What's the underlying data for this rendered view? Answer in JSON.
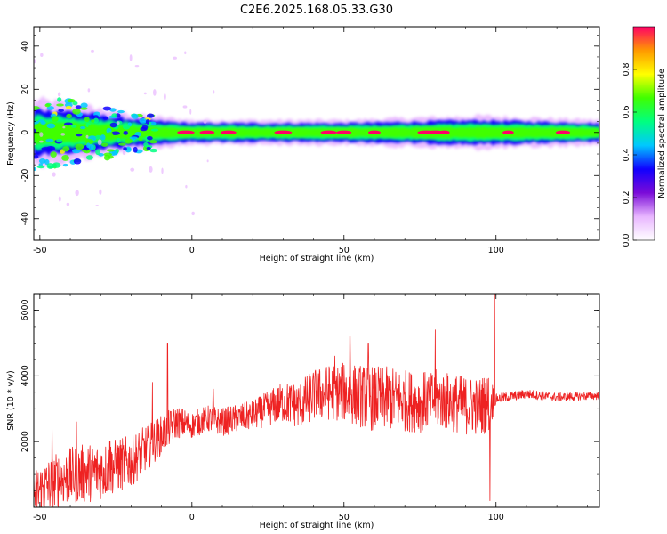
{
  "title": "C2E6.2025.168.05.33.G30",
  "colors": {
    "snr_line": "#ee2222",
    "axis": "#000000",
    "background": "#ffffff"
  },
  "chart_data": [
    {
      "type": "heatmap",
      "xlabel": "Height of straight line (km)",
      "ylabel": "Frequency (Hz)",
      "xlim": [
        -52,
        134
      ],
      "ylim": [
        -50,
        49
      ],
      "x_ticks": [
        -50,
        0,
        50,
        100
      ],
      "y_ticks": [
        -40,
        -20,
        0,
        20,
        40
      ],
      "colorbar": {
        "label": "Normalized spectral amplitude",
        "range": [
          0.0,
          1.0
        ],
        "ticks": [
          0.0,
          0.2,
          0.4,
          0.6,
          0.8
        ],
        "colormap": [
          "#ffffff",
          "#e8b6ff",
          "#7a0bd8",
          "#1000ff",
          "#00c8ff",
          "#00ff80",
          "#40ff00",
          "#ffff00",
          "#ff9900",
          "#ff0066"
        ]
      },
      "band": {
        "center_hz": 0,
        "half_width_hz": [
          {
            "x": -52,
            "value": 8
          },
          {
            "x": -40,
            "value": 7
          },
          {
            "x": -25,
            "value": 5
          },
          {
            "x": -15,
            "value": 4
          },
          {
            "x": 0,
            "value": 3
          },
          {
            "x": 50,
            "value": 3
          },
          {
            "x": 95,
            "value": 4
          },
          {
            "x": 134,
            "value": 3
          }
        ],
        "hot_spots_km": [
          -2,
          5,
          12,
          30,
          45,
          50,
          60,
          77,
          80,
          83,
          104,
          122
        ]
      }
    },
    {
      "type": "line",
      "xlabel": "Height of straight line (km)",
      "ylabel": "SNR (10 * v/v)",
      "xlim": [
        -52,
        134
      ],
      "ylim": [
        0,
        6500
      ],
      "x_ticks": [
        -50,
        0,
        50,
        100
      ],
      "y_ticks": [
        2000,
        4000,
        6000
      ],
      "series": [
        {
          "trend": [
            {
              "x": -52,
              "value": 400
            },
            {
              "x": -45,
              "value": 800
            },
            {
              "x": -38,
              "value": 1000
            },
            {
              "x": -30,
              "value": 1100
            },
            {
              "x": -20,
              "value": 1400
            },
            {
              "x": -10,
              "value": 2200
            },
            {
              "x": -5,
              "value": 2600
            },
            {
              "x": 0,
              "value": 2500
            },
            {
              "x": 5,
              "value": 2700
            },
            {
              "x": 10,
              "value": 2600
            },
            {
              "x": 20,
              "value": 2800
            },
            {
              "x": 25,
              "value": 3000
            },
            {
              "x": 30,
              "value": 3200
            },
            {
              "x": 35,
              "value": 3100
            },
            {
              "x": 40,
              "value": 3400
            },
            {
              "x": 45,
              "value": 3500
            },
            {
              "x": 50,
              "value": 3500
            },
            {
              "x": 55,
              "value": 3400
            },
            {
              "x": 60,
              "value": 3300
            },
            {
              "x": 65,
              "value": 3300
            },
            {
              "x": 70,
              "value": 3250
            },
            {
              "x": 75,
              "value": 3200
            },
            {
              "x": 80,
              "value": 3300
            },
            {
              "x": 85,
              "value": 3200
            },
            {
              "x": 90,
              "value": 3100
            },
            {
              "x": 95,
              "value": 3100
            },
            {
              "x": 98,
              "value": 3200
            },
            {
              "x": 100,
              "value": 3300
            },
            {
              "x": 110,
              "value": 3450
            },
            {
              "x": 120,
              "value": 3350
            },
            {
              "x": 134,
              "value": 3400
            }
          ],
          "noise_amplitude": [
            {
              "x": -52,
              "value": 800
            },
            {
              "x": -35,
              "value": 900
            },
            {
              "x": -20,
              "value": 800
            },
            {
              "x": -10,
              "value": 600
            },
            {
              "x": 0,
              "value": 400
            },
            {
              "x": 20,
              "value": 450
            },
            {
              "x": 40,
              "value": 800
            },
            {
              "x": 60,
              "value": 1000
            },
            {
              "x": 80,
              "value": 900
            },
            {
              "x": 98,
              "value": 900
            },
            {
              "x": 100,
              "value": 150
            },
            {
              "x": 134,
              "value": 120
            }
          ],
          "spikes": [
            {
              "x": -46,
              "value": 2700
            },
            {
              "x": -38,
              "value": 2600
            },
            {
              "x": -27,
              "value": 2000
            },
            {
              "x": -13,
              "value": 3800
            },
            {
              "x": -8,
              "value": 5000
            },
            {
              "x": 7,
              "value": 3600
            },
            {
              "x": 47,
              "value": 4600
            },
            {
              "x": 52,
              "value": 5200
            },
            {
              "x": 58,
              "value": 5000
            },
            {
              "x": 80,
              "value": 5400
            },
            {
              "x": 98,
              "value": 200
            },
            {
              "x": 99.5,
              "value": 6600
            }
          ]
        }
      ]
    }
  ]
}
